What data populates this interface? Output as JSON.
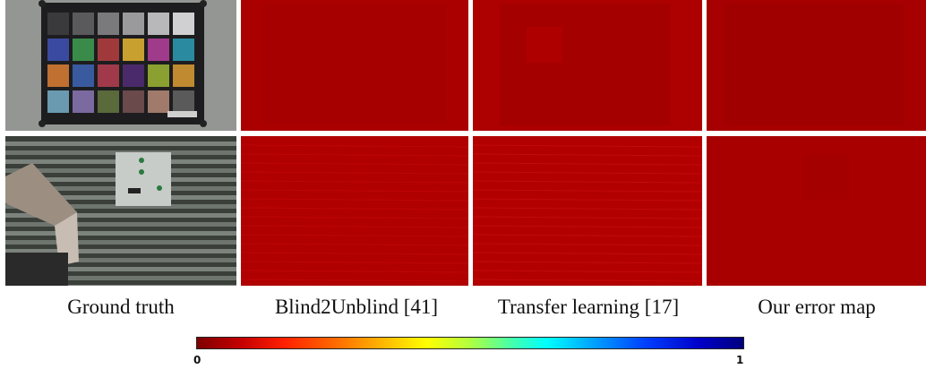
{
  "captions": {
    "col1": "Ground truth",
    "col2": "Blind2Unblind [41]",
    "col3": "Transfer learning [17]",
    "col4": "Our error map"
  },
  "colorbar": {
    "min_label": "0",
    "max_label": "1",
    "colormap": "jet"
  },
  "colors": {
    "error_red": "#ab0000",
    "error_red_dark": "#9e0000"
  }
}
